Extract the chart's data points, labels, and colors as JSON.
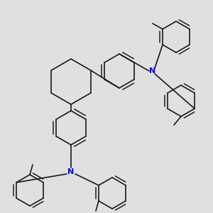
{
  "bg_color": "#e0e0e0",
  "line_color": "#1a1a1a",
  "N_color": "#0000ee",
  "line_width": 1.2,
  "fig_size": [
    3.0,
    3.0
  ],
  "dpi": 100,
  "xlim": [
    0,
    300
  ],
  "ylim": [
    0,
    300
  ]
}
